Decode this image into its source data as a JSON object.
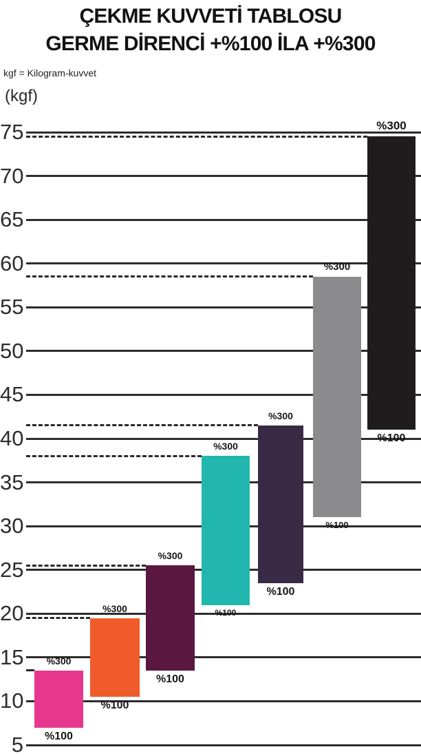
{
  "title": {
    "line1": "ÇEKME KUVVETİ TABLOSU",
    "line2": "GERME DİRENCİ +%100 İLA +%300"
  },
  "notes": {
    "unit_definition": "kgf = Kilogram-kuvvet",
    "axis_unit": "(kgf)"
  },
  "chart_data": {
    "type": "bar",
    "subtype": "floating_range_bars",
    "title": "ÇEKME KUVVETİ TABLOSU — GERME DİRENCİ +%100 İLA +%300",
    "ylabel": "(kgf)",
    "unit": "kgf",
    "ylim": [
      5,
      75
    ],
    "yticks": [
      75,
      70,
      65,
      60,
      55,
      50,
      45,
      40,
      35,
      30,
      25,
      20,
      15,
      10,
      5
    ],
    "grid": true,
    "xlabel": "",
    "x_tick_labels": [],
    "legend_position": "none",
    "range_labels": {
      "low": "%100",
      "high": "%300"
    },
    "dashed_guide_at_high": true,
    "series": [
      {
        "name": "bar-1-pink",
        "color": "#E6378C",
        "low": 7,
        "high": 13.5,
        "low_label": "%100",
        "high_label": "%300"
      },
      {
        "name": "bar-2-orange",
        "color": "#F05B2B",
        "low": 10.5,
        "high": 19.5,
        "low_label": "%100",
        "high_label": "%300"
      },
      {
        "name": "bar-3-plum",
        "color": "#5A1841",
        "low": 13.5,
        "high": 25.5,
        "low_label": "%100",
        "high_label": "%300"
      },
      {
        "name": "bar-4-teal",
        "color": "#22B7AE",
        "low": 21,
        "high": 38,
        "low_label": "%100",
        "high_label": "%300"
      },
      {
        "name": "bar-5-dark-purple",
        "color": "#382A44",
        "low": 23.5,
        "high": 41.5,
        "low_label": "%100",
        "high_label": "%300"
      },
      {
        "name": "bar-6-gray",
        "color": "#8B8A8D",
        "low": 31,
        "high": 58.5,
        "low_label": "%100",
        "high_label": "%300"
      },
      {
        "name": "bar-7-black",
        "color": "#1F1C1D",
        "low": 41,
        "high": 74.5,
        "low_label": "%100",
        "high_label": "%300"
      }
    ]
  }
}
